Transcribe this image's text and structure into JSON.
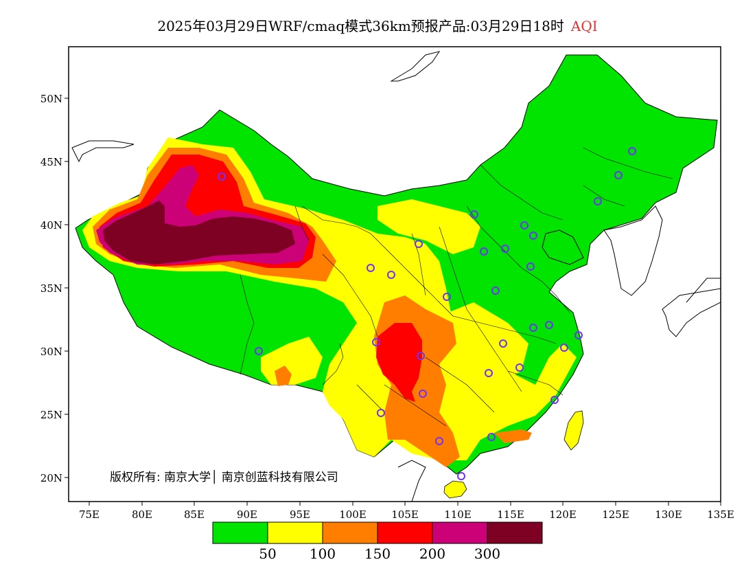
{
  "title": {
    "main": "2025年03月29日WRF/cmaq模式36km预报产品:03月29日18时",
    "variable": "AQI"
  },
  "axes": {
    "lat_labels": [
      "50N",
      "45N",
      "40N",
      "35N",
      "30N",
      "25N",
      "20N"
    ],
    "lon_labels": [
      "75E",
      "80E",
      "85E",
      "90E",
      "95E",
      "100E",
      "105E",
      "110E",
      "115E",
      "120E",
      "125E",
      "130E",
      "135E"
    ]
  },
  "copyright": "版权所有: 南京大学│ 南京创蓝科技有限公司",
  "legend": {
    "colors": [
      "#00e400",
      "#ffff00",
      "#ff7e00",
      "#ff0000",
      "#cc0077",
      "#7e0023"
    ],
    "labels": [
      "50",
      "100",
      "150",
      "200",
      "300"
    ]
  },
  "colors": {
    "good": "#00e400",
    "moderate": "#ffff00",
    "usg": "#ff7e00",
    "unhealthy": "#ff0000",
    "very_unhealthy": "#cc0077",
    "hazardous": "#7e0023",
    "station_marker": "#7030ff"
  }
}
